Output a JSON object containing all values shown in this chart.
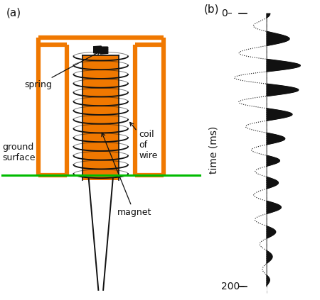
{
  "fig_width": 4.5,
  "fig_height": 4.23,
  "dpi": 100,
  "background": "#ffffff",
  "orange": "#F07800",
  "green": "#00BB00",
  "black": "#111111",
  "label_a": "(a)",
  "label_b": "(b)",
  "text_spring": "spring",
  "text_coil": "coil\nof\nwire",
  "text_ground": "ground\nsurface",
  "text_magnet": "magnet",
  "tick_0": "0–",
  "tick_200": "200–",
  "ylabel_b": "time (ms)"
}
